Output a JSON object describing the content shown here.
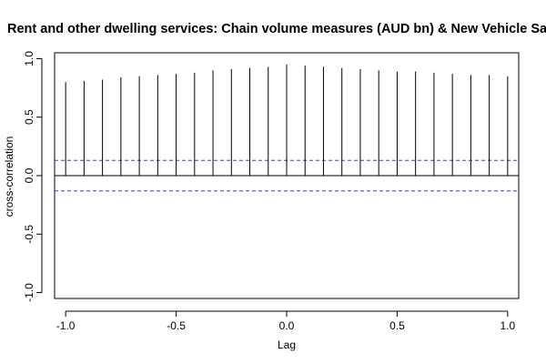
{
  "chart_data": {
    "type": "bar",
    "title": "Rent and other dwelling services: Chain volume measures (AUD bn) & New Vehicle Sa",
    "xlabel": "Lag",
    "ylabel": "cross-correlation",
    "xlim": [
      -1.05,
      1.05
    ],
    "ylim": [
      -1.05,
      1.05
    ],
    "x_ticks": [
      -1.0,
      -0.5,
      0.0,
      0.5,
      1.0
    ],
    "x_tick_labels": [
      "-1.0",
      "-0.5",
      "0.0",
      "0.5",
      "1.0"
    ],
    "y_ticks": [
      -1.0,
      -0.5,
      0.0,
      0.5,
      1.0
    ],
    "y_tick_labels": [
      "-1.0",
      "-0.5",
      "0.0",
      "0.5",
      "1.0"
    ],
    "lags": [
      -1.0,
      -0.9167,
      -0.8333,
      -0.75,
      -0.6667,
      -0.5833,
      -0.5,
      -0.4167,
      -0.3333,
      -0.25,
      -0.1667,
      -0.0833,
      0.0,
      0.0833,
      0.1667,
      0.25,
      0.3333,
      0.4167,
      0.5,
      0.5833,
      0.6667,
      0.75,
      0.8333,
      0.9167,
      1.0
    ],
    "values": [
      0.8,
      0.81,
      0.82,
      0.84,
      0.85,
      0.86,
      0.87,
      0.88,
      0.9,
      0.91,
      0.92,
      0.93,
      0.95,
      0.94,
      0.93,
      0.92,
      0.91,
      0.9,
      0.89,
      0.89,
      0.88,
      0.87,
      0.86,
      0.86,
      0.85
    ],
    "confidence_bound": 0.13,
    "colors": {
      "bars": "#000000",
      "confidence_lines": "#3a3ae6",
      "zero_line": "#000000",
      "axes": "#000000"
    },
    "grid": false,
    "legend": "none"
  }
}
